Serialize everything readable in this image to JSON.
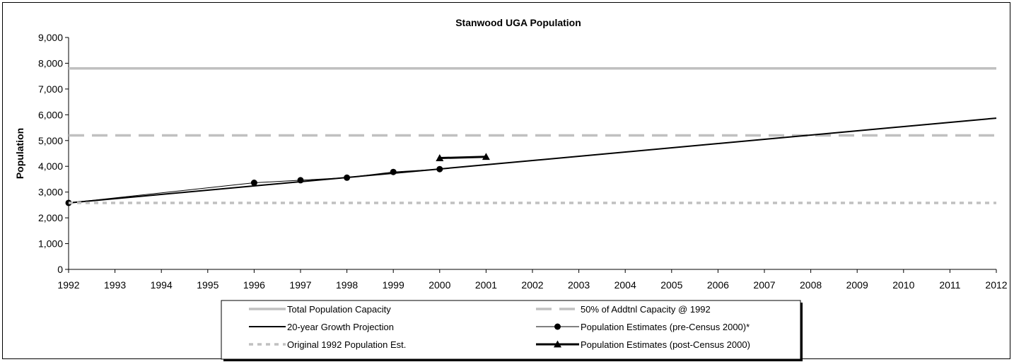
{
  "chart_data": {
    "type": "line",
    "title": "Stanwood UGA Population",
    "xlabel": "",
    "ylabel": "Population",
    "xlim": [
      1992,
      2012
    ],
    "ylim": [
      0,
      9000
    ],
    "x_ticks": [
      "1992",
      "1993",
      "1994",
      "1995",
      "1996",
      "1997",
      "1998",
      "1999",
      "2000",
      "2001",
      "2002",
      "2003",
      "2004",
      "2005",
      "2006",
      "2007",
      "2008",
      "2009",
      "2010",
      "2011",
      "2012"
    ],
    "y_ticks": [
      "0",
      "1,000",
      "2,000",
      "3,000",
      "4,000",
      "5,000",
      "6,000",
      "7,000",
      "8,000",
      "9,000"
    ],
    "grid": false,
    "legend_position": "bottom",
    "series": [
      {
        "name": "Total Population Capacity",
        "color": "#c0c0c0",
        "style": "solid-thick",
        "x": [
          1992,
          2012
        ],
        "y": [
          7800,
          7800
        ]
      },
      {
        "name": "50% of Addtnl Capacity @ 1992",
        "color": "#c0c0c0",
        "style": "dashed-thick",
        "x": [
          1992,
          2012
        ],
        "y": [
          5200,
          5200
        ]
      },
      {
        "name": "20-year Growth Projection",
        "color": "#000000",
        "style": "solid",
        "x": [
          1992,
          2012
        ],
        "y": [
          2580,
          5870
        ]
      },
      {
        "name": "Population Estimates (pre-Census 2000)*",
        "color": "#000000",
        "style": "solid-thin",
        "marker": "circle",
        "x": [
          1992,
          1996,
          1997,
          1998,
          1999,
          2000
        ],
        "y": [
          2580,
          3360,
          3460,
          3560,
          3780,
          3890
        ]
      },
      {
        "name": "Original 1992 Population Est.",
        "color": "#c0c0c0",
        "style": "dotted-thick",
        "x": [
          1992,
          2012
        ],
        "y": [
          2580,
          2580
        ]
      },
      {
        "name": "Population Estimates (post-Census 2000)",
        "color": "#000000",
        "style": "solid-bold",
        "marker": "triangle",
        "x": [
          2000,
          2001
        ],
        "y": [
          4320,
          4370
        ]
      }
    ]
  }
}
